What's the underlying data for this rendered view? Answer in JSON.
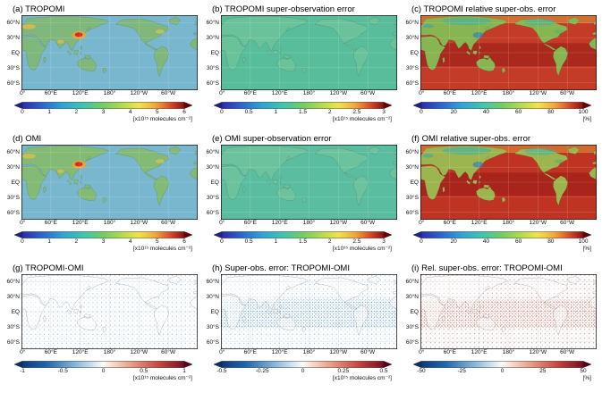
{
  "figure": {
    "description": "Nine-panel global map figure comparing TROPOMI and OMI NO2 super-observations, their errors and differences",
    "rows": 3,
    "cols": 3
  },
  "axis": {
    "y_ticks": [
      "60°N",
      "30°N",
      "EQ",
      "30°S",
      "60°S"
    ],
    "x_ticks": [
      "0°",
      "60°E",
      "120°E",
      "180°",
      "120°W",
      "60°W"
    ]
  },
  "panels": [
    {
      "id": "a",
      "title": "(a) TROPOMI",
      "map_style": "no2",
      "colors": {
        "ocean": "#79b7cf",
        "land": "#7fb87a"
      },
      "colorbar": {
        "gradient": "jet",
        "range": [
          0,
          6
        ],
        "ticks": [
          "0",
          "1",
          "2",
          "3",
          "4",
          "5",
          "6"
        ],
        "unit": "[x10¹⁵ molecules cm⁻²]",
        "arrow_left": "#20208f",
        "arrow_right": "#6b0000"
      }
    },
    {
      "id": "b",
      "title": "(b) TROPOMI super-observation error",
      "map_style": "err",
      "colors": {
        "ocean": "#58bd9b",
        "land": "#6ac29a"
      },
      "colorbar": {
        "gradient": "jet",
        "range": [
          0,
          3
        ],
        "ticks": [
          "0",
          "0.5",
          "1",
          "1.5",
          "2",
          "2.5",
          "3"
        ],
        "unit": "[x10¹⁵ molecules cm⁻²]",
        "arrow_left": "#20208f",
        "arrow_right": "#6b0000"
      }
    },
    {
      "id": "c",
      "title": "(c) TROPOMI relative super-obs. error",
      "map_style": "relerr",
      "colors": {
        "ocean": "#c43b27",
        "land": "#86b551"
      },
      "colorbar": {
        "gradient": "jet",
        "range": [
          0,
          100
        ],
        "ticks": [
          "0",
          "20",
          "40",
          "60",
          "80",
          "100"
        ],
        "unit": "[%]",
        "arrow_left": "#20208f",
        "arrow_right": "#6b0000"
      }
    },
    {
      "id": "d",
      "title": "(d) OMI",
      "map_style": "no2",
      "colors": {
        "ocean": "#79b7cf",
        "land": "#83ba74"
      },
      "colorbar": {
        "gradient": "jet",
        "range": [
          0,
          6
        ],
        "ticks": [
          "0",
          "1",
          "2",
          "3",
          "4",
          "5",
          "6"
        ],
        "unit": "[x10¹⁵ molecules cm⁻²]",
        "arrow_left": "#20208f",
        "arrow_right": "#6b0000"
      }
    },
    {
      "id": "e",
      "title": "(e) OMI super-observation error",
      "map_style": "err",
      "colors": {
        "ocean": "#5abda0",
        "land": "#6cc29d"
      },
      "colorbar": {
        "gradient": "jet",
        "range": [
          0,
          3
        ],
        "ticks": [
          "0",
          "0.5",
          "1",
          "1.5",
          "2",
          "2.5",
          "3"
        ],
        "unit": "[x10¹⁵ molecules cm⁻²]",
        "arrow_left": "#20208f",
        "arrow_right": "#6b0000"
      }
    },
    {
      "id": "f",
      "title": "(f) OMI relative super-obs. error",
      "map_style": "relerr",
      "colors": {
        "ocean": "#bf3322",
        "land": "#9cb54e"
      },
      "colorbar": {
        "gradient": "jet",
        "range": [
          0,
          100
        ],
        "ticks": [
          "0",
          "20",
          "40",
          "60",
          "80",
          "100"
        ],
        "unit": "[%]",
        "arrow_left": "#20208f",
        "arrow_right": "#6b0000"
      }
    },
    {
      "id": "g",
      "title": "(g) TROPOMI-OMI",
      "map_style": "diff-blue-sparse",
      "colors": {
        "ocean": "#ffffff",
        "land": "rgba(255,255,255,0.45)"
      },
      "colorbar": {
        "gradient": "div",
        "range": [
          -1,
          1
        ],
        "ticks": [
          "-1",
          "-0.5",
          "0",
          "0.5",
          "1"
        ],
        "unit": "[x10¹⁵ molecules cm⁻²]",
        "arrow_left": "#08306b",
        "arrow_right": "#5c0015"
      }
    },
    {
      "id": "h",
      "title": "(h) Super-obs. error: TROPOMI-OMI",
      "map_style": "diff-blue-dense",
      "colors": {
        "ocean": "#ffffff",
        "land": "rgba(255,255,255,0.45)"
      },
      "colorbar": {
        "gradient": "div",
        "range": [
          -0.5,
          0.5
        ],
        "ticks": [
          "-0.5",
          "-0.25",
          "0",
          "0.25",
          "0.5"
        ],
        "unit": "[x10¹⁵ molecules cm⁻²]",
        "arrow_left": "#08306b",
        "arrow_right": "#5c0015"
      }
    },
    {
      "id": "i",
      "title": "(i) Rel. super-obs. error: TROPOMI-OMI",
      "map_style": "diff-redblue",
      "colors": {
        "ocean": "#ffffff",
        "land": "rgba(255,255,255,0.45)"
      },
      "colorbar": {
        "gradient": "div",
        "range": [
          -50,
          50
        ],
        "ticks": [
          "-50",
          "-25",
          "0",
          "25",
          "50"
        ],
        "unit": "[%]",
        "arrow_left": "#08306b",
        "arrow_right": "#5c0015"
      }
    }
  ],
  "chart_data": [
    {
      "panel": "a",
      "type": "heatmap",
      "title": "(a) TROPOMI",
      "quantity": "TROPOMI tropospheric NO2 super-observation mean column",
      "units": "10^15 molecules cm^-2",
      "value_range": [
        0,
        6
      ],
      "colorbar_ticks": [
        0,
        1,
        2,
        3,
        4,
        5,
        6
      ],
      "colormap": "rainbow (blue-green-yellow-red)",
      "x_ticks": [
        "0°",
        "60°E",
        "120°E",
        "180°",
        "120°W",
        "60°W"
      ],
      "y_ticks": [
        "60°N",
        "30°N",
        "EQ",
        "30°S",
        "60°S"
      ],
      "spatial_pattern": "Low background (about 0.3-1) over oceans and Southern Hemisphere; strong enhancement up to about 6 over eastern China; moderate enhancements over Europe, India and the eastern US."
    },
    {
      "panel": "b",
      "type": "heatmap",
      "title": "(b) TROPOMI super-observation error",
      "quantity": "TROPOMI super-observation error",
      "units": "10^15 molecules cm^-2",
      "value_range": [
        0,
        3
      ],
      "colorbar_ticks": [
        0,
        0.5,
        1,
        1.5,
        2,
        2.5,
        3
      ],
      "colormap": "rainbow (blue-green-yellow-red)",
      "x_ticks": [
        "0°",
        "60°E",
        "120°E",
        "180°",
        "120°W",
        "60°W"
      ],
      "y_ticks": [
        "60°N",
        "30°N",
        "EQ",
        "30°S",
        "60°S"
      ],
      "spatial_pattern": "Fairly uniform error values around 0.5-1 globally, slightly higher over land and polluted regions."
    },
    {
      "panel": "c",
      "type": "heatmap",
      "title": "(c) TROPOMI relative super-obs. error",
      "quantity": "TROPOMI relative super-observation error",
      "units": "%",
      "value_range": [
        0,
        100
      ],
      "colorbar_ticks": [
        0,
        20,
        40,
        60,
        80,
        100
      ],
      "colormap": "rainbow (blue-green-yellow-red)",
      "x_ticks": [
        "0°",
        "60°E",
        "120°E",
        "180°",
        "120°W",
        "60°W"
      ],
      "y_ticks": [
        "60°N",
        "30°N",
        "EQ",
        "30°S",
        "60°S"
      ],
      "spatial_pattern": "Relative errors of 60-100% (red) over tropical and subtropical oceans; 20-50% (green/blue) over polluted continents and high northern latitudes."
    },
    {
      "panel": "d",
      "type": "heatmap",
      "title": "(d) OMI",
      "quantity": "OMI tropospheric NO2 super-observation mean column",
      "units": "10^15 molecules cm^-2",
      "value_range": [
        0,
        6
      ],
      "colorbar_ticks": [
        0,
        1,
        2,
        3,
        4,
        5,
        6
      ],
      "colormap": "rainbow (blue-green-yellow-red)",
      "x_ticks": [
        "0°",
        "60°E",
        "120°E",
        "180°",
        "120°W",
        "60°W"
      ],
      "y_ticks": [
        "60°N",
        "30°N",
        "EQ",
        "30°S",
        "60°S"
      ],
      "spatial_pattern": "Similar to TROPOMI: low ocean background with strong enhancement over eastern China and moderate enhancements over Europe, India and the eastern US; slightly noisier."
    },
    {
      "panel": "e",
      "type": "heatmap",
      "title": "(e) OMI super-observation error",
      "quantity": "OMI super-observation error",
      "units": "10^15 molecules cm^-2",
      "value_range": [
        0,
        3
      ],
      "colorbar_ticks": [
        0,
        0.5,
        1,
        1.5,
        2,
        2.5,
        3
      ],
      "colormap": "rainbow (blue-green-yellow-red)",
      "x_ticks": [
        "0°",
        "60°E",
        "120°E",
        "180°",
        "120°W",
        "60°W"
      ],
      "y_ticks": [
        "60°N",
        "30°N",
        "EQ",
        "30°S",
        "60°S"
      ],
      "spatial_pattern": "Fairly uniform error values around 0.5-1 globally, slightly elevated over polluted land regions."
    },
    {
      "panel": "f",
      "type": "heatmap",
      "title": "(f) OMI relative super-obs. error",
      "quantity": "OMI relative super-observation error",
      "units": "%",
      "value_range": [
        0,
        100
      ],
      "colorbar_ticks": [
        0,
        20,
        40,
        60,
        80,
        100
      ],
      "colormap": "rainbow (blue-green-yellow-red)",
      "x_ticks": [
        "0°",
        "60°E",
        "120°E",
        "180°",
        "120°W",
        "60°W"
      ],
      "y_ticks": [
        "60°N",
        "30°N",
        "EQ",
        "30°S",
        "60°S"
      ],
      "spatial_pattern": "Higher relative errors than TROPOMI overall: widespread 60-100% (dark red) over oceans, lower values over polluted continents."
    },
    {
      "panel": "g",
      "type": "heatmap",
      "title": "(g) TROPOMI-OMI",
      "quantity": "Difference of NO2 super-observations, TROPOMI minus OMI",
      "units": "10^15 molecules cm^-2",
      "value_range": [
        -1,
        1
      ],
      "colorbar_ticks": [
        -1,
        -0.5,
        0,
        0.5,
        1
      ],
      "colormap": "diverging blue-white-red",
      "x_ticks": [
        "0°",
        "60°E",
        "120°E",
        "180°",
        "120°W",
        "60°W"
      ],
      "y_ticks": [
        "60°N",
        "30°N",
        "EQ",
        "30°S",
        "60°S"
      ],
      "spatial_pattern": "Mostly near zero (white) with scattered small negative (blue) differences, i.e. TROPOMI slightly lower than OMI in many regions."
    },
    {
      "panel": "h",
      "type": "heatmap",
      "title": "(h) Super-obs. error: TROPOMI-OMI",
      "quantity": "Difference of super-observation errors, TROPOMI minus OMI",
      "units": "10^15 molecules cm^-2",
      "value_range": [
        -0.5,
        0.5
      ],
      "colorbar_ticks": [
        -0.5,
        -0.25,
        0,
        0.25,
        0.5
      ],
      "colormap": "diverging blue-white-red",
      "x_ticks": [
        "0°",
        "60°E",
        "120°E",
        "180°",
        "120°W",
        "60°W"
      ],
      "y_ticks": [
        "60°N",
        "30°N",
        "EQ",
        "30°S",
        "60°S"
      ],
      "spatial_pattern": "Mostly near zero with widespread small negative (blue) differences, strongest in the tropics: TROPOMI errors smaller than OMI."
    },
    {
      "panel": "i",
      "type": "heatmap",
      "title": "(i) Rel. super-obs. error: TROPOMI-OMI",
      "quantity": "Difference of relative super-observation errors, TROPOMI minus OMI",
      "units": "%",
      "value_range": [
        -50,
        50
      ],
      "colorbar_ticks": [
        -50,
        -25,
        0,
        25,
        50
      ],
      "colormap": "diverging blue-white-red",
      "x_ticks": [
        "0°",
        "60°E",
        "120°E",
        "180°",
        "120°W",
        "60°W"
      ],
      "y_ticks": [
        "60°N",
        "30°N",
        "EQ",
        "30°S",
        "60°S"
      ],
      "spatial_pattern": "Mixed positive (red) and negative (blue) speckled differences; positive values dominate over tropical oceans."
    }
  ]
}
